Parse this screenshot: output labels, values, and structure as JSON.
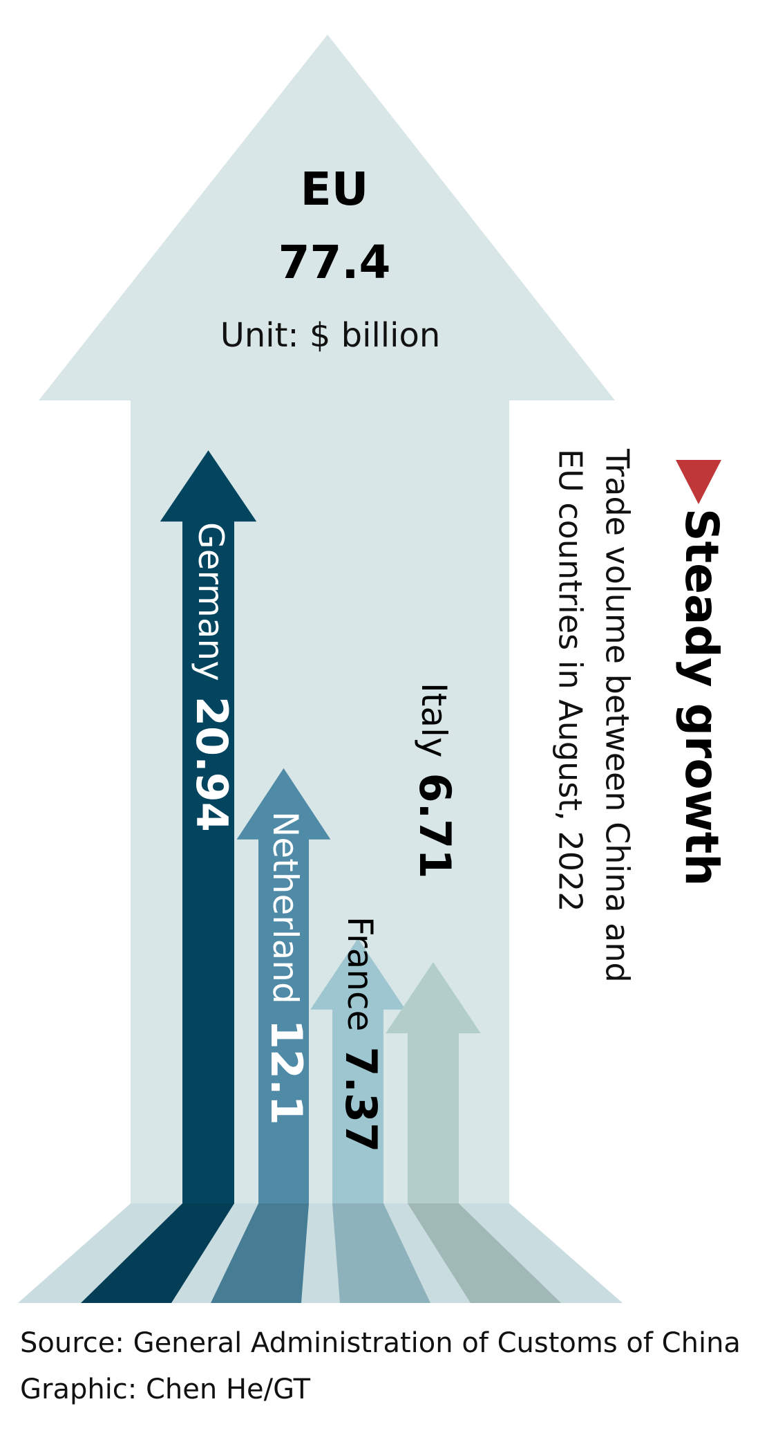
{
  "chart_data": {
    "type": "arrow",
    "title": "Steady growth",
    "subtitle": [
      "Trade volume between China and",
      "EU countries in August, 2022"
    ],
    "total": {
      "name": "EU",
      "value": 77.4
    },
    "unit": "Unit: $ billion",
    "categories": [
      "Germany",
      "Netherland",
      "France",
      "Italy"
    ],
    "values": [
      20.94,
      12.1,
      7.37,
      6.71
    ],
    "colors": [
      "#03445f",
      "#4f8aa6",
      "#9dc6d0",
      "#b2cdca"
    ],
    "source": "Source: General Administration of Customs of China",
    "credit": "Graphic: Chen He/GT"
  }
}
